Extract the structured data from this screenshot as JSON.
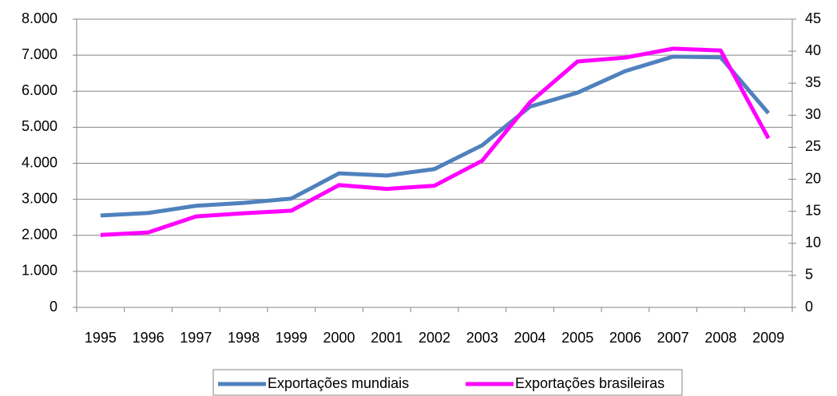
{
  "chart_data": {
    "type": "line",
    "categories": [
      "1995",
      "1996",
      "1997",
      "1998",
      "1999",
      "2000",
      "2001",
      "2002",
      "2003",
      "2004",
      "2005",
      "2006",
      "2007",
      "2008",
      "2009"
    ],
    "series": [
      {
        "name": "Exportações mundiais",
        "color": "#4f81bd",
        "values": [
          2550,
          2620,
          2820,
          2900,
          3020,
          3720,
          3660,
          3840,
          4500,
          5570,
          5960,
          6560,
          6960,
          6940,
          5390
        ]
      },
      {
        "name": "Exportações brasileiras",
        "color": "#ff00ff",
        "axis": "y2",
        "values": [
          11.3,
          11.7,
          14.2,
          14.7,
          15.1,
          19.1,
          18.5,
          19.0,
          22.9,
          32.0,
          38.4,
          39.0,
          40.4,
          40.1,
          26.4
        ]
      }
    ],
    "ylim": [
      0,
      8000
    ],
    "yticks": [
      0,
      {
        "value": 1000,
        "label": "1.000"
      },
      {
        "value": 2000,
        "label": "2.000"
      },
      {
        "value": 3000,
        "label": "3.000"
      },
      {
        "value": 4000,
        "label": "4.000"
      },
      {
        "value": 5000,
        "label": "5.000"
      },
      {
        "value": 6000,
        "label": "6.000"
      },
      {
        "value": 7000,
        "label": "7.000"
      },
      {
        "value": 8000,
        "label": "8.000"
      }
    ],
    "y2lim": [
      0,
      45
    ],
    "y2ticks": [
      0,
      5,
      10,
      15,
      20,
      25,
      30,
      35,
      40,
      45
    ],
    "grid": true,
    "legend": "bottom"
  }
}
